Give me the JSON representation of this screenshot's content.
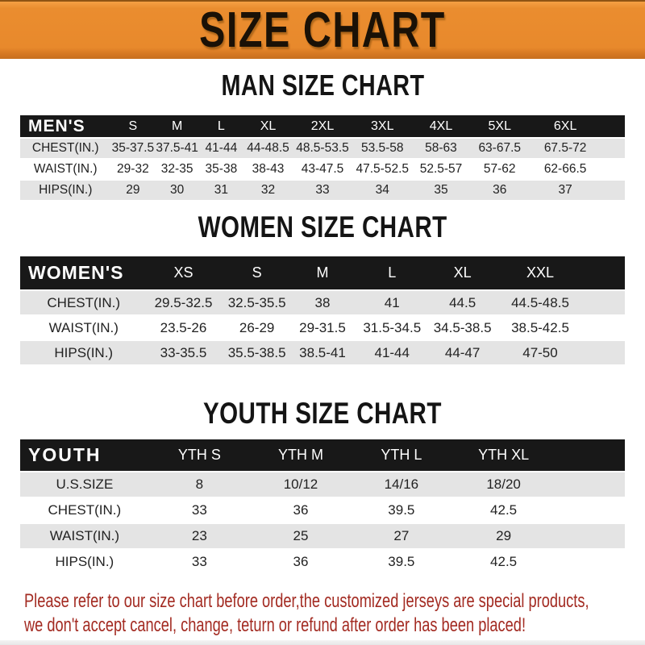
{
  "banner": {
    "title": "SIZE CHART"
  },
  "men": {
    "title": "MAN SIZE CHART",
    "table": {
      "header": [
        "MEN'S",
        "S",
        "M",
        "L",
        "XL",
        "2XL",
        "3XL",
        "4XL",
        "5XL",
        "6XL"
      ],
      "rows": [
        [
          "CHEST(IN.)",
          "35-37.5",
          "37.5-41",
          "41-44",
          "44-48.5",
          "48.5-53.5",
          "53.5-58",
          "58-63",
          "63-67.5",
          "67.5-72"
        ],
        [
          "WAIST(IN.)",
          "29-32",
          "32-35",
          "35-38",
          "38-43",
          "43-47.5",
          "47.5-52.5",
          "52.5-57",
          "57-62",
          "62-66.5"
        ],
        [
          "HIPS(IN.)",
          "29",
          "30",
          "31",
          "32",
          "33",
          "34",
          "35",
          "36",
          "37"
        ]
      ]
    }
  },
  "women": {
    "title": "WOMEN SIZE CHART",
    "table": {
      "header": [
        "WOMEN'S",
        "XS",
        "S",
        "M",
        "L",
        "XL",
        "XXL"
      ],
      "rows": [
        [
          "CHEST(IN.)",
          "29.5-32.5",
          "32.5-35.5",
          "38",
          "41",
          "44.5",
          "44.5-48.5"
        ],
        [
          "WAIST(IN.)",
          "23.5-26",
          "26-29",
          "29-31.5",
          "31.5-34.5",
          "34.5-38.5",
          "38.5-42.5"
        ],
        [
          "HIPS(IN.)",
          "33-35.5",
          "35.5-38.5",
          "38.5-41",
          "41-44",
          "44-47",
          "47-50"
        ]
      ]
    }
  },
  "youth": {
    "title": "YOUTH SIZE CHART",
    "table": {
      "header": [
        "YOUTH",
        "YTH S",
        "YTH M",
        "YTH L",
        "YTH XL"
      ],
      "rows": [
        [
          "U.S.SIZE",
          "8",
          "10/12",
          "14/16",
          "18/20"
        ],
        [
          "CHEST(IN.)",
          "33",
          "36",
          "39.5",
          "42.5"
        ],
        [
          "WAIST(IN.)",
          "23",
          "25",
          "27",
          "29"
        ],
        [
          "HIPS(IN.)",
          "33",
          "36",
          "39.5",
          "42.5"
        ]
      ]
    }
  },
  "footer": {
    "line1": "Please refer to our size chart before order,the customized jerseys are special products,",
    "line2": "we don't accept cancel, change, teturn or refund after order has been placed!"
  },
  "colors": {
    "banner_orange": "#E8892C",
    "header_black": "#181818",
    "row_gray": "#E4E4E4",
    "footer_red": "#A32B22"
  }
}
